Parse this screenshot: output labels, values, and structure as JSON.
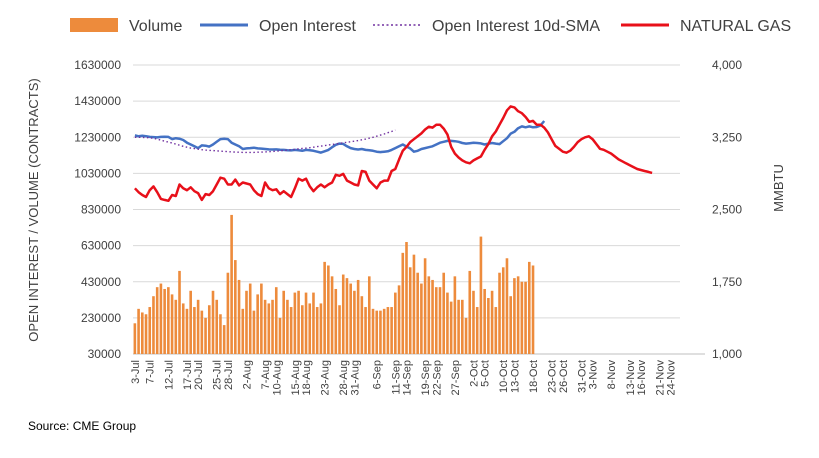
{
  "chart_data": {
    "type": "bar",
    "legend": {
      "placement": "top",
      "entries": [
        {
          "name": "Volume",
          "kind": "bar",
          "color": "#ED8B3C"
        },
        {
          "name": "Open Interest",
          "kind": "line",
          "color": "#4472C4"
        },
        {
          "name": "Open Interest 10d-SMA",
          "kind": "dotted",
          "color": "#7030A0"
        },
        {
          "name": "NATURAL GAS",
          "kind": "line",
          "color": "#E8101A"
        }
      ]
    },
    "ylabel_left": "OPEN INTEREST / VOLUME (CONTRACTS)",
    "ylabel_right": "MMBTU",
    "ylim_left": [
      30000,
      1630000
    ],
    "ylim_right": [
      1000,
      4000
    ],
    "y_ticks_left": [
      "1630000",
      "1430000",
      "1230000",
      "1030000",
      "830000",
      "630000",
      "430000",
      "230000",
      "30000"
    ],
    "y_ticks_right": [
      "4,000",
      "3,250",
      "2,500",
      "1,750",
      "1,000"
    ],
    "x_tick_labels": [
      "3-Jul",
      "7-Jul",
      "12-Jul",
      "17-Jul",
      "20-Jul",
      "25-Jul",
      "28-Jul",
      "2-Aug",
      "7-Aug",
      "10-Aug",
      "15-Aug",
      "18-Aug",
      "23-Aug",
      "28-Aug",
      "31-Aug",
      "6-Sep",
      "11-Sep",
      "14-Sep",
      "19-Sep",
      "22-Sep",
      "27-Sep",
      "2-Oct",
      "5-Oct",
      "10-Oct",
      "13-Oct",
      "18-Oct",
      "23-Oct",
      "26-Oct",
      "31-Oct",
      "3-Nov",
      "8-Nov",
      "13-Nov",
      "16-Nov",
      "21-Nov",
      "24-Nov"
    ],
    "x_tick_days": [
      0,
      4,
      9,
      14,
      17,
      22,
      25,
      30,
      35,
      38,
      43,
      46,
      51,
      56,
      59,
      65,
      70,
      73,
      78,
      81,
      86,
      91,
      94,
      99,
      102,
      107,
      112,
      115,
      120,
      123,
      128,
      133,
      136,
      141,
      144
    ],
    "total_slots": 147,
    "trading_days": [
      0,
      1,
      2,
      3,
      4,
      5,
      6,
      7,
      8,
      9,
      10,
      11,
      12,
      13,
      14,
      15,
      16,
      17,
      18,
      19,
      20,
      21,
      22,
      23,
      24,
      25,
      26,
      27,
      28,
      29,
      30,
      31,
      32,
      33,
      34,
      35,
      36,
      37,
      38,
      39,
      40,
      41,
      42,
      43,
      44,
      45,
      46,
      47,
      48,
      49,
      50,
      51,
      52,
      53,
      54,
      55,
      56,
      57,
      58,
      59,
      60,
      61,
      62,
      63,
      64,
      65,
      66,
      67,
      68,
      69,
      70,
      71,
      72,
      73,
      74,
      75,
      76,
      77,
      78,
      79,
      80,
      81,
      82,
      83,
      84,
      85,
      86,
      87,
      88,
      89,
      90,
      91,
      92,
      93,
      94,
      95,
      96,
      97,
      98,
      99,
      100,
      101,
      102,
      103,
      104,
      105,
      106,
      107,
      108,
      109,
      110,
      111,
      112,
      113,
      114,
      115,
      116,
      117,
      118,
      119,
      120,
      121,
      122,
      123,
      124,
      125,
      126,
      127,
      128,
      129,
      130,
      131,
      132,
      133,
      134,
      135,
      136,
      137,
      138,
      139
    ],
    "series": [
      {
        "name": "Volume",
        "axis": "left",
        "type": "bar",
        "values": [
          200000,
          280000,
          260000,
          250000,
          290000,
          350000,
          400000,
          420000,
          390000,
          400000,
          360000,
          330000,
          490000,
          310000,
          280000,
          380000,
          290000,
          330000,
          270000,
          230000,
          300000,
          380000,
          330000,
          250000,
          190000,
          480000,
          800000,
          550000,
          440000,
          280000,
          380000,
          420000,
          270000,
          360000,
          420000,
          330000,
          310000,
          330000,
          400000,
          230000,
          380000,
          330000,
          290000,
          370000,
          380000,
          300000,
          370000,
          310000,
          370000,
          290000,
          310000,
          540000,
          520000,
          460000,
          390000,
          300000,
          470000,
          450000,
          420000,
          380000,
          440000,
          350000,
          290000,
          460000,
          280000,
          270000,
          270000,
          280000,
          290000,
          290000,
          370000,
          410000,
          590000,
          650000,
          510000,
          580000,
          480000,
          420000,
          560000,
          460000,
          440000,
          400000,
          400000,
          480000,
          370000,
          320000,
          460000,
          330000,
          330000,
          230000,
          490000,
          380000,
          290000,
          680000,
          390000,
          340000,
          380000,
          290000,
          480000,
          510000,
          560000,
          350000,
          450000,
          460000,
          430000,
          430000,
          540000,
          520000
        ]
      },
      {
        "name": "Open Interest",
        "axis": "left",
        "type": "line",
        "values": [
          1240000,
          1235000,
          1238000,
          1236000,
          1232000,
          1231000,
          1229000,
          1232000,
          1233000,
          1232000,
          1220000,
          1225000,
          1222000,
          1215000,
          1200000,
          1190000,
          1180000,
          1170000,
          1185000,
          1183000,
          1178000,
          1190000,
          1205000,
          1220000,
          1222000,
          1220000,
          1200000,
          1190000,
          1180000,
          1165000,
          1168000,
          1170000,
          1172000,
          1168000,
          1167000,
          1165000,
          1163000,
          1162000,
          1163000,
          1161000,
          1160000,
          1158000,
          1157000,
          1160000,
          1158000,
          1155000,
          1160000,
          1158000,
          1155000,
          1150000,
          1145000,
          1152000,
          1160000,
          1175000,
          1188000,
          1195000,
          1193000,
          1180000,
          1170000,
          1165000,
          1162000,
          1165000,
          1160000,
          1158000,
          1155000,
          1150000,
          1148000,
          1150000,
          1152000,
          1160000,
          1170000,
          1180000,
          1190000,
          1178000,
          1168000,
          1150000,
          1155000,
          1165000,
          1170000,
          1175000,
          1180000,
          1190000,
          1200000,
          1205000,
          1210000,
          1210000,
          1208000,
          1205000,
          1198000,
          1195000,
          1197000,
          1199000,
          1198000,
          1196000,
          1190000,
          1195000,
          1198000,
          1195000,
          1192000,
          1208000,
          1225000,
          1250000,
          1260000,
          1280000,
          1290000,
          1285000,
          1290000,
          1285000,
          1287000,
          1295000,
          1320000
        ]
      },
      {
        "name": "Open Interest 10d-SMA",
        "axis": "left",
        "type": "dotted",
        "values": [
          1230000,
          1230000,
          1229000,
          1228000,
          1227000,
          1224000,
          1219000,
          1214000,
          1208000,
          1203000,
          1198000,
          1192000,
          1186000,
          1180000,
          1175000,
          1170000,
          1167000,
          1164000,
          1161000,
          1159000,
          1157000,
          1156000,
          1155000,
          1153000,
          1152000,
          1150000,
          1149000,
          1148000,
          1147000,
          1146000,
          1146000,
          1146000,
          1146000,
          1147000,
          1148000,
          1149000,
          1150000,
          1151000,
          1153000,
          1155000,
          1157000,
          1159000,
          1161000,
          1163000,
          1166000,
          1168000,
          1170000,
          1172000,
          1175000,
          1178000,
          1181000,
          1184000,
          1187000,
          1190000,
          1193000,
          1196000,
          1199000,
          1202000,
          1205000,
          1208000,
          1212000,
          1216000,
          1220000,
          1225000,
          1230000,
          1236000,
          1242000,
          1248000,
          1255000,
          1262000,
          1270000
        ]
      },
      {
        "name": "NATURAL GAS",
        "axis": "right",
        "type": "line",
        "values": [
          2720,
          2680,
          2650,
          2630,
          2700,
          2740,
          2680,
          2610,
          2600,
          2590,
          2650,
          2640,
          2760,
          2720,
          2700,
          2730,
          2690,
          2670,
          2600,
          2660,
          2650,
          2690,
          2760,
          2830,
          2820,
          2760,
          2760,
          2810,
          2750,
          2780,
          2770,
          2760,
          2700,
          2660,
          2640,
          2780,
          2720,
          2700,
          2710,
          2660,
          2690,
          2660,
          2630,
          2720,
          2820,
          2800,
          2820,
          2740,
          2690,
          2730,
          2760,
          2730,
          2760,
          2780,
          2860,
          2850,
          2870,
          2800,
          2780,
          2760,
          2750,
          2900,
          2890,
          2800,
          2760,
          2720,
          2780,
          2800,
          2800,
          2900,
          2920,
          3020,
          3110,
          3150,
          3200,
          3230,
          3260,
          3290,
          3330,
          3360,
          3350,
          3380,
          3380,
          3340,
          3280,
          3150,
          3080,
          3040,
          3010,
          2990,
          2980,
          3010,
          3030,
          3050,
          3120,
          3180,
          3260,
          3310,
          3380,
          3450,
          3530,
          3570,
          3560,
          3520,
          3500,
          3460,
          3410,
          3420,
          3380,
          3380,
          3350,
          3300,
          3230,
          3160,
          3130,
          3100,
          3090,
          3110,
          3150,
          3200,
          3230,
          3250,
          3260,
          3230,
          3180,
          3130,
          3120,
          3100,
          3080,
          3050,
          3020,
          3000,
          2980,
          2960,
          2940,
          2920,
          2910,
          2900,
          2890,
          2880
        ]
      }
    ]
  },
  "source": "Source: CME Group"
}
